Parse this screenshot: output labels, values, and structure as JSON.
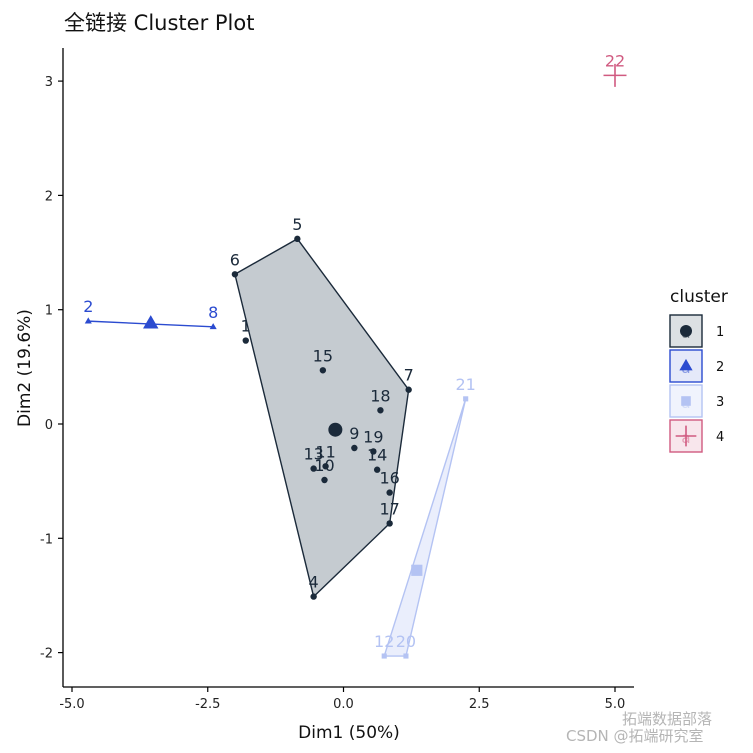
{
  "chart_data": {
    "type": "scatter",
    "title": "全链接 Cluster Plot",
    "xlabel": "Dim1 (50%)",
    "ylabel": "Dim2 (19.6%)",
    "xlim": [
      -5.2,
      5.2
    ],
    "ylim": [
      -2.3,
      3.3
    ],
    "x_ticks": [
      -5.0,
      -2.5,
      0.0,
      2.5,
      5.0
    ],
    "x_tick_labels": [
      "-5.0",
      "-2.5",
      "0.0",
      "2.5",
      "5.0"
    ],
    "y_ticks": [
      -2,
      -1,
      0,
      1,
      2,
      3
    ],
    "y_tick_labels": [
      "-2",
      "-1",
      "0",
      "1",
      "2",
      "3"
    ],
    "grid": false,
    "legend_title": "cluster",
    "legend_position": "right",
    "clusters": [
      {
        "name": "1",
        "color": "#1b2a3a",
        "fill": "#c5cbd0",
        "marker": "circle",
        "center": [
          -0.15,
          -0.05
        ],
        "hull": [
          5,
          7,
          17,
          4,
          6
        ],
        "points": [
          {
            "label": "1",
            "x": -1.8,
            "y": 0.73
          },
          {
            "label": "4",
            "x": -0.55,
            "y": -1.51
          },
          {
            "label": "5",
            "x": -0.85,
            "y": 1.62
          },
          {
            "label": "6",
            "x": -2.0,
            "y": 1.31
          },
          {
            "label": "7",
            "x": 1.2,
            "y": 0.3
          },
          {
            "label": "9",
            "x": 0.2,
            "y": -0.21
          },
          {
            "label": "10",
            "x": -0.35,
            "y": -0.49
          },
          {
            "label": "11",
            "x": -0.33,
            "y": -0.37
          },
          {
            "label": "13",
            "x": -0.55,
            "y": -0.39
          },
          {
            "label": "14",
            "x": 0.62,
            "y": -0.4
          },
          {
            "label": "15",
            "x": -0.38,
            "y": 0.47
          },
          {
            "label": "16",
            "x": 0.85,
            "y": -0.6
          },
          {
            "label": "17",
            "x": 0.85,
            "y": -0.87
          },
          {
            "label": "18",
            "x": 0.68,
            "y": 0.12
          },
          {
            "label": "19",
            "x": 0.55,
            "y": -0.24
          }
        ]
      },
      {
        "name": "2",
        "color": "#2b4bd0",
        "fill": "#2b4bd0",
        "marker": "triangle",
        "center": [
          -3.55,
          0.88
        ],
        "hull": [
          2,
          8
        ],
        "points": [
          {
            "label": "2",
            "x": -4.7,
            "y": 0.9
          },
          {
            "label": "8",
            "x": -2.4,
            "y": 0.85
          }
        ]
      },
      {
        "name": "3",
        "color": "#b4c3f3",
        "fill": "#e6ebfb",
        "marker": "square",
        "center": [
          1.35,
          -1.28
        ],
        "hull": [
          21,
          20,
          12
        ],
        "points": [
          {
            "label": "12",
            "x": 0.75,
            "y": -2.03
          },
          {
            "label": "20",
            "x": 1.15,
            "y": -2.03
          },
          {
            "label": "21",
            "x": 2.25,
            "y": 0.22
          }
        ]
      },
      {
        "name": "4",
        "color": "#d05a80",
        "fill": "#d05a80",
        "marker": "cross",
        "center": null,
        "hull": [],
        "points": [
          {
            "label": "22",
            "x": 5.0,
            "y": 3.05
          }
        ]
      }
    ]
  },
  "legend_key_symbols": [
    "a",
    "a",
    "a",
    "a"
  ],
  "watermark": {
    "wechat": "拓端数据部落",
    "csdn": "CSDN @拓端研究室"
  }
}
